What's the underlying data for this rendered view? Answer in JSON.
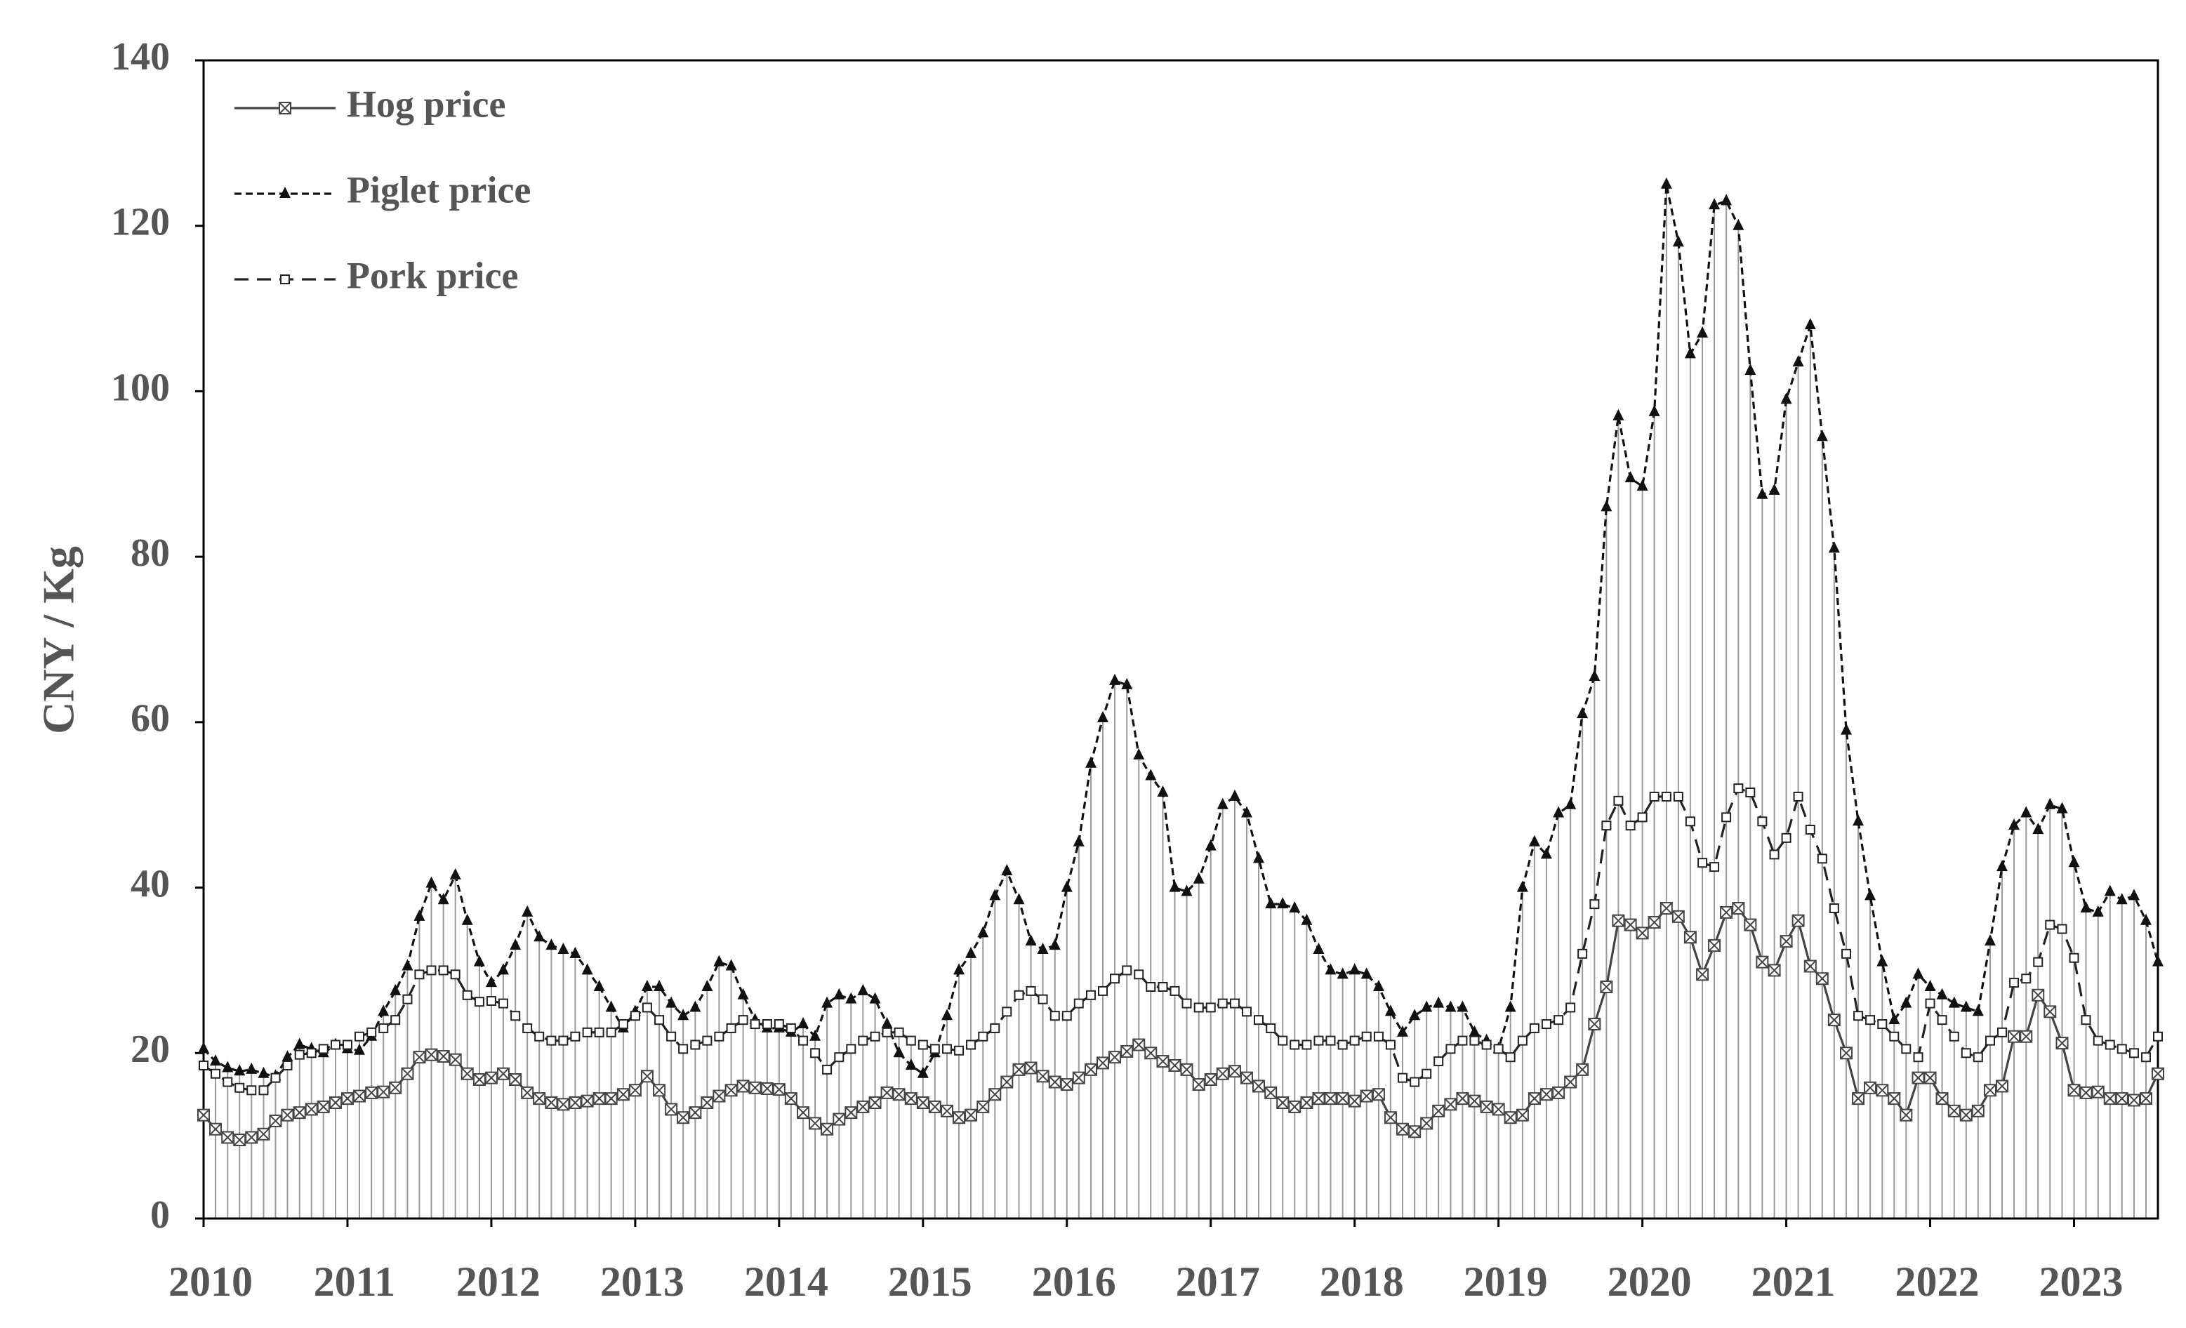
{
  "chart_data": {
    "type": "line",
    "ylabel": "CNY / Kg",
    "xlim": [
      2010,
      2023.583
    ],
    "xticks": [
      2010,
      2011,
      2012,
      2013,
      2014,
      2015,
      2016,
      2017,
      2018,
      2019,
      2020,
      2021,
      2022,
      2023
    ],
    "ylim": [
      0,
      140
    ],
    "yticks": [
      0,
      20,
      40,
      60,
      80,
      100,
      120,
      140
    ],
    "legend": "upper left",
    "drop_lines": true,
    "drop_color": "#9a9a9a",
    "x": [
      2010,
      2010.083,
      2010.167,
      2010.25,
      2010.333,
      2010.417,
      2010.5,
      2010.583,
      2010.667,
      2010.75,
      2010.833,
      2010.917,
      2011,
      2011.083,
      2011.167,
      2011.25,
      2011.333,
      2011.417,
      2011.5,
      2011.583,
      2011.667,
      2011.75,
      2011.833,
      2011.917,
      2012,
      2012.083,
      2012.167,
      2012.25,
      2012.333,
      2012.417,
      2012.5,
      2012.583,
      2012.667,
      2012.75,
      2012.833,
      2012.917,
      2013,
      2013.083,
      2013.167,
      2013.25,
      2013.333,
      2013.417,
      2013.5,
      2013.583,
      2013.667,
      2013.75,
      2013.833,
      2013.917,
      2014,
      2014.083,
      2014.167,
      2014.25,
      2014.333,
      2014.417,
      2014.5,
      2014.583,
      2014.667,
      2014.75,
      2014.833,
      2014.917,
      2015,
      2015.083,
      2015.167,
      2015.25,
      2015.333,
      2015.417,
      2015.5,
      2015.583,
      2015.667,
      2015.75,
      2015.833,
      2015.917,
      2016,
      2016.083,
      2016.167,
      2016.25,
      2016.333,
      2016.417,
      2016.5,
      2016.583,
      2016.667,
      2016.75,
      2016.833,
      2016.917,
      2017,
      2017.083,
      2017.167,
      2017.25,
      2017.333,
      2017.417,
      2017.5,
      2017.583,
      2017.667,
      2017.75,
      2017.833,
      2017.917,
      2018,
      2018.083,
      2018.167,
      2018.25,
      2018.333,
      2018.417,
      2018.5,
      2018.583,
      2018.667,
      2018.75,
      2018.833,
      2018.917,
      2019,
      2019.083,
      2019.167,
      2019.25,
      2019.333,
      2019.417,
      2019.5,
      2019.583,
      2019.667,
      2019.75,
      2019.833,
      2019.917,
      2020,
      2020.083,
      2020.167,
      2020.25,
      2020.333,
      2020.417,
      2020.5,
      2020.583,
      2020.667,
      2020.75,
      2020.833,
      2020.917,
      2021,
      2021.083,
      2021.167,
      2021.25,
      2021.333,
      2021.417,
      2021.5,
      2021.583,
      2021.667,
      2021.75,
      2021.833,
      2021.917,
      2022,
      2022.083,
      2022.167,
      2022.25,
      2022.333,
      2022.417,
      2022.5,
      2022.583,
      2022.667,
      2022.75,
      2022.833,
      2022.917,
      2023,
      2023.083,
      2023.167,
      2023.25,
      2023.333,
      2023.417,
      2023.5,
      2023.583
    ],
    "series": [
      {
        "name": "Hog price",
        "color": "#444444",
        "dash": "solid",
        "marker": "x-square",
        "values": [
          12.5,
          10.8,
          9.8,
          9.5,
          9.8,
          10.2,
          11.8,
          12.5,
          12.8,
          13.2,
          13.5,
          14,
          14.5,
          14.8,
          15.2,
          15.3,
          15.8,
          17.5,
          19.5,
          19.8,
          19.6,
          19.2,
          17.5,
          16.8,
          17,
          17.5,
          16.8,
          15.2,
          14.5,
          14,
          13.8,
          14,
          14.2,
          14.5,
          14.5,
          15,
          15.5,
          17.2,
          15.5,
          13.2,
          12.2,
          12.8,
          14,
          14.8,
          15.5,
          16,
          15.8,
          15.7,
          15.6,
          14.5,
          12.8,
          11.5,
          10.8,
          12,
          12.8,
          13.5,
          14,
          15.2,
          15,
          14.5,
          14,
          13.5,
          13,
          12.2,
          12.5,
          13.5,
          15,
          16.5,
          18,
          18.2,
          17.2,
          16.5,
          16.2,
          17,
          18,
          18.8,
          19.5,
          20.2,
          21,
          20,
          19,
          18.5,
          18,
          16.2,
          16.8,
          17.5,
          17.8,
          17,
          16,
          15.2,
          14,
          13.5,
          14,
          14.5,
          14.5,
          14.5,
          14.2,
          14.8,
          15,
          12.2,
          10.8,
          10.5,
          11.5,
          13,
          13.8,
          14.5,
          14.2,
          13.5,
          13.2,
          12.2,
          12.5,
          14.5,
          15,
          15.2,
          16.5,
          18,
          23.5,
          28,
          36,
          35.5,
          34.5,
          35.8,
          37.5,
          36.5,
          34,
          29.5,
          33,
          37,
          37.5,
          35.5,
          31,
          30,
          33.5,
          36,
          30.5,
          29,
          24,
          20,
          14.5,
          15.8,
          15.5,
          14.5,
          12.5,
          17,
          17,
          14.5,
          13,
          12.5,
          13,
          15.5,
          16,
          22,
          22,
          27,
          25,
          21.2,
          15.5,
          15.2,
          15.3,
          14.5,
          14.5,
          14.3,
          14.5,
          17.5
        ]
      },
      {
        "name": "Piglet price",
        "color": "#111111",
        "dash": "dashed",
        "marker": "triangle",
        "values": [
          20.5,
          19,
          18.2,
          17.8,
          18,
          17.5,
          17.2,
          19.5,
          21,
          20.5,
          20,
          21,
          20.5,
          20.3,
          22,
          25,
          27.5,
          30.5,
          36.5,
          40.5,
          38.5,
          41.5,
          36,
          31,
          28.5,
          30,
          33,
          37,
          34,
          33,
          32.5,
          32,
          30,
          28,
          25.5,
          23,
          25,
          28,
          28,
          26,
          24.5,
          25.5,
          28,
          31,
          30.5,
          27,
          24,
          23,
          23,
          22.5,
          23.5,
          22,
          26,
          27,
          26.5,
          27.5,
          26.5,
          23.5,
          20,
          18.5,
          17.5,
          20,
          24.5,
          30,
          32,
          34.5,
          39,
          42,
          38.5,
          33.5,
          32.5,
          33,
          40,
          45.5,
          55,
          60.5,
          65,
          64.5,
          56,
          53.5,
          51.5,
          40,
          39.5,
          41,
          45,
          50,
          51,
          49,
          43.5,
          38,
          38,
          37.5,
          36,
          32.5,
          30,
          29.5,
          30,
          29.5,
          28,
          25,
          22.5,
          24.5,
          25.5,
          26,
          25.5,
          25.5,
          22.5,
          21.5,
          20.5,
          25.5,
          40,
          45.5,
          44,
          49,
          50,
          61,
          65.5,
          86,
          97,
          89.5,
          88.5,
          97.5,
          125,
          118,
          104.5,
          107,
          122.5,
          123,
          120,
          102.5,
          87.5,
          88,
          99,
          103.5,
          108,
          94.5,
          81,
          59,
          48,
          39,
          31,
          24,
          26,
          29.5,
          28,
          27,
          26,
          25.5,
          25,
          33.5,
          42.5,
          47.5,
          49,
          47,
          50,
          49.5,
          43,
          37.5,
          37,
          39.5,
          38.5,
          39,
          36,
          31
        ]
      },
      {
        "name": "Pork price",
        "color": "#222222",
        "dash": "long-dashed",
        "marker": "open-square",
        "values": [
          18.5,
          17.5,
          16.5,
          15.8,
          15.5,
          15.5,
          17,
          18.5,
          19.8,
          20,
          20.5,
          21,
          21,
          22,
          22.5,
          23,
          24,
          26.5,
          29.5,
          30,
          30,
          29.5,
          27,
          26.2,
          26.3,
          26,
          24.5,
          23,
          22,
          21.5,
          21.5,
          22,
          22.5,
          22.5,
          22.5,
          23.5,
          24.5,
          25.5,
          24,
          22,
          20.5,
          21,
          21.5,
          22,
          23,
          24,
          23.5,
          23.5,
          23.5,
          23,
          21.5,
          20,
          18,
          19.5,
          20.5,
          21.5,
          22,
          22.5,
          22.5,
          21.5,
          21,
          20.5,
          20.5,
          20.3,
          21,
          22,
          23,
          25,
          27,
          27.5,
          26.5,
          24.5,
          24.5,
          26,
          27,
          27.5,
          29,
          30,
          29.5,
          28,
          28,
          27.5,
          26,
          25.5,
          25.5,
          26,
          26,
          25,
          24,
          23,
          21.5,
          21,
          21,
          21.5,
          21.5,
          21,
          21.5,
          22,
          22,
          21,
          17,
          16.5,
          17.5,
          19,
          20.5,
          21.5,
          21.5,
          21,
          20.5,
          19.5,
          21.5,
          23,
          23.5,
          24,
          25.5,
          32,
          38,
          47.5,
          50.5,
          47.5,
          48.5,
          51,
          51,
          51,
          48,
          43,
          42.5,
          48.5,
          52,
          51.5,
          48,
          44,
          46,
          51,
          47,
          43.5,
          37.5,
          32,
          24.5,
          24,
          23.5,
          22,
          20.5,
          19.5,
          26,
          24,
          22,
          20,
          19.5,
          21.5,
          22.5,
          28.5,
          29,
          31,
          35.5,
          35,
          31.5,
          24,
          21.5,
          21,
          20.5,
          20,
          19.5,
          22
        ]
      }
    ]
  }
}
